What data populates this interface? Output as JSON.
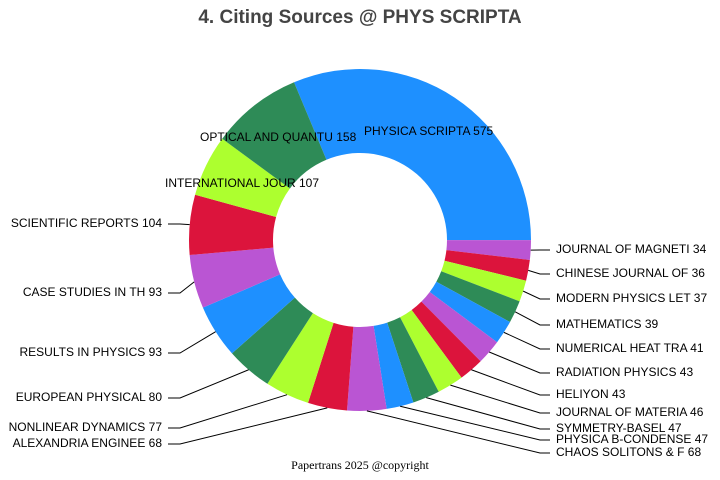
{
  "chart_data": {
    "type": "donut",
    "title": "4. Citing Sources @ PHYS SCRIPTA",
    "footer": "Papertrans 2025 @copyright",
    "labels": [
      "PHYSICA SCRIPTA 575",
      "JOURNAL OF MAGNETI 34",
      "CHINESE JOURNAL OF 36",
      "MODERN PHYSICS LET 37",
      "MATHEMATICS 39",
      "NUMERICAL HEAT TRA 41",
      "RADIATION PHYSICS  43",
      "HELIYON 43",
      "JOURNAL OF MATERIA 46",
      "SYMMETRY-BASEL 47",
      "PHYSICA B-CONDENSE 47",
      "CHAOS SOLITONS & F 68",
      "ALEXANDRIA ENGINEE 68",
      "NONLINEAR DYNAMICS 77",
      "EUROPEAN PHYSICAL  80",
      "RESULTS IN PHYSICS 93",
      "CASE STUDIES IN TH 93",
      "SCIENTIFIC REPORTS 104",
      "INTERNATIONAL JOUR 107",
      "OPTICAL AND QUANTU 158"
    ],
    "values": [
      575,
      34,
      36,
      37,
      39,
      41,
      43,
      43,
      46,
      47,
      47,
      68,
      68,
      77,
      80,
      93,
      93,
      104,
      107,
      158
    ],
    "colors": [
      "#1e90ff",
      "#ba55d3",
      "#dc143c",
      "#adff2f",
      "#2e8b57"
    ]
  }
}
